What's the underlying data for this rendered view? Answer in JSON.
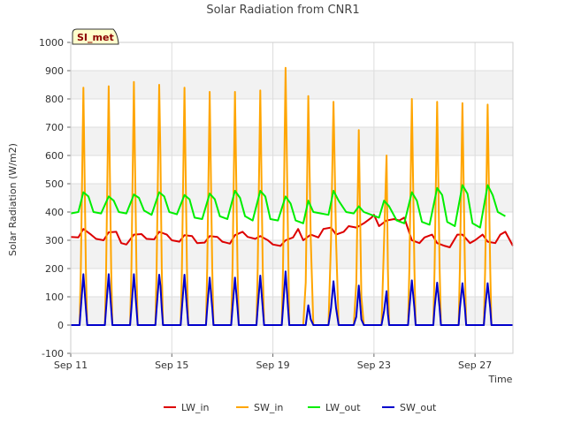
{
  "chart_data": {
    "type": "line",
    "title": "Solar Radiation from CNR1",
    "xlabel": "Time",
    "ylabel": "Solar Radiation (W/m2)",
    "badge": "SI_met",
    "xlim": [
      0,
      17.5
    ],
    "ylim": [
      -100,
      1000
    ],
    "yticks": [
      -100,
      0,
      100,
      200,
      300,
      400,
      500,
      600,
      700,
      800,
      900,
      1000
    ],
    "xticks": [
      {
        "day": 0,
        "label": "Sep 11"
      },
      {
        "day": 4,
        "label": "Sep 15"
      },
      {
        "day": 8,
        "label": "Sep 19"
      },
      {
        "day": 12,
        "label": "Sep 23"
      },
      {
        "day": 16,
        "label": "Sep 27"
      }
    ],
    "grid": true,
    "legend_position": "bottom",
    "series": [
      {
        "name": "LW_in",
        "color": "#dd0000",
        "points": [
          [
            0.0,
            312
          ],
          [
            0.3,
            310
          ],
          [
            0.5,
            340
          ],
          [
            0.8,
            320
          ],
          [
            1.0,
            305
          ],
          [
            1.3,
            300
          ],
          [
            1.5,
            328
          ],
          [
            1.8,
            330
          ],
          [
            2.0,
            290
          ],
          [
            2.2,
            285
          ],
          [
            2.5,
            320
          ],
          [
            2.8,
            322
          ],
          [
            3.0,
            305
          ],
          [
            3.3,
            303
          ],
          [
            3.5,
            330
          ],
          [
            3.8,
            320
          ],
          [
            4.0,
            300
          ],
          [
            4.3,
            295
          ],
          [
            4.5,
            318
          ],
          [
            4.8,
            315
          ],
          [
            5.0,
            290
          ],
          [
            5.3,
            292
          ],
          [
            5.5,
            315
          ],
          [
            5.8,
            312
          ],
          [
            6.0,
            295
          ],
          [
            6.3,
            288
          ],
          [
            6.5,
            318
          ],
          [
            6.8,
            330
          ],
          [
            7.0,
            312
          ],
          [
            7.3,
            305
          ],
          [
            7.5,
            315
          ],
          [
            7.8,
            300
          ],
          [
            8.0,
            285
          ],
          [
            8.3,
            280
          ],
          [
            8.5,
            300
          ],
          [
            8.8,
            310
          ],
          [
            9.0,
            340
          ],
          [
            9.2,
            300
          ],
          [
            9.5,
            320
          ],
          [
            9.8,
            310
          ],
          [
            10.0,
            340
          ],
          [
            10.3,
            345
          ],
          [
            10.5,
            320
          ],
          [
            10.8,
            330
          ],
          [
            11.0,
            350
          ],
          [
            11.3,
            345
          ],
          [
            11.6,
            360
          ],
          [
            11.9,
            380
          ],
          [
            12.0,
            390
          ],
          [
            12.2,
            350
          ],
          [
            12.5,
            370
          ],
          [
            12.8,
            375
          ],
          [
            13.0,
            370
          ],
          [
            13.2,
            380
          ],
          [
            13.5,
            300
          ],
          [
            13.8,
            290
          ],
          [
            14.0,
            310
          ],
          [
            14.3,
            320
          ],
          [
            14.5,
            290
          ],
          [
            14.8,
            280
          ],
          [
            15.0,
            275
          ],
          [
            15.3,
            320
          ],
          [
            15.5,
            320
          ],
          [
            15.8,
            290
          ],
          [
            16.0,
            300
          ],
          [
            16.3,
            320
          ],
          [
            16.5,
            295
          ],
          [
            16.8,
            290
          ],
          [
            17.0,
            320
          ],
          [
            17.2,
            330
          ],
          [
            17.5,
            280
          ]
        ]
      },
      {
        "name": "SW_in",
        "color": "#ffa500",
        "points": [
          [
            0.0,
            0
          ],
          [
            0.35,
            0
          ],
          [
            0.4,
            200
          ],
          [
            0.5,
            840
          ],
          [
            0.6,
            200
          ],
          [
            0.65,
            0
          ],
          [
            1.35,
            0
          ],
          [
            1.4,
            200
          ],
          [
            1.5,
            845
          ],
          [
            1.6,
            200
          ],
          [
            1.65,
            0
          ],
          [
            2.35,
            0
          ],
          [
            2.4,
            200
          ],
          [
            2.5,
            860
          ],
          [
            2.6,
            200
          ],
          [
            2.65,
            0
          ],
          [
            3.35,
            0
          ],
          [
            3.4,
            200
          ],
          [
            3.5,
            850
          ],
          [
            3.55,
            600
          ],
          [
            3.6,
            200
          ],
          [
            3.65,
            0
          ],
          [
            4.35,
            0
          ],
          [
            4.4,
            200
          ],
          [
            4.5,
            840
          ],
          [
            4.6,
            200
          ],
          [
            4.65,
            0
          ],
          [
            5.35,
            0
          ],
          [
            5.4,
            200
          ],
          [
            5.5,
            825
          ],
          [
            5.6,
            200
          ],
          [
            5.65,
            0
          ],
          [
            6.35,
            0
          ],
          [
            6.4,
            200
          ],
          [
            6.5,
            825
          ],
          [
            6.6,
            200
          ],
          [
            6.65,
            0
          ],
          [
            7.35,
            0
          ],
          [
            7.4,
            200
          ],
          [
            7.5,
            830
          ],
          [
            7.6,
            200
          ],
          [
            7.65,
            0
          ],
          [
            8.35,
            0
          ],
          [
            8.4,
            200
          ],
          [
            8.5,
            910
          ],
          [
            8.6,
            300
          ],
          [
            8.65,
            0
          ],
          [
            9.2,
            0
          ],
          [
            9.3,
            150
          ],
          [
            9.4,
            810
          ],
          [
            9.5,
            300
          ],
          [
            9.6,
            0
          ],
          [
            10.2,
            0
          ],
          [
            10.3,
            300
          ],
          [
            10.4,
            790
          ],
          [
            10.5,
            300
          ],
          [
            10.6,
            0
          ],
          [
            11.2,
            0
          ],
          [
            11.3,
            150
          ],
          [
            11.4,
            690
          ],
          [
            11.5,
            100
          ],
          [
            11.6,
            0
          ],
          [
            12.3,
            0
          ],
          [
            12.4,
            300
          ],
          [
            12.5,
            600
          ],
          [
            12.55,
            200
          ],
          [
            12.6,
            0
          ],
          [
            13.35,
            0
          ],
          [
            13.4,
            200
          ],
          [
            13.5,
            800
          ],
          [
            13.6,
            200
          ],
          [
            13.65,
            0
          ],
          [
            14.35,
            0
          ],
          [
            14.4,
            200
          ],
          [
            14.5,
            790
          ],
          [
            14.6,
            200
          ],
          [
            14.65,
            0
          ],
          [
            15.35,
            0
          ],
          [
            15.4,
            200
          ],
          [
            15.5,
            785
          ],
          [
            15.6,
            200
          ],
          [
            15.65,
            0
          ],
          [
            16.35,
            0
          ],
          [
            16.4,
            200
          ],
          [
            16.5,
            780
          ],
          [
            16.6,
            200
          ],
          [
            16.65,
            0
          ],
          [
            17.5,
            0
          ]
        ]
      },
      {
        "name": "LW_out",
        "color": "#00ee00",
        "points": [
          [
            0.0,
            395
          ],
          [
            0.3,
            400
          ],
          [
            0.5,
            470
          ],
          [
            0.7,
            455
          ],
          [
            0.9,
            400
          ],
          [
            1.2,
            395
          ],
          [
            1.5,
            455
          ],
          [
            1.7,
            440
          ],
          [
            1.9,
            400
          ],
          [
            2.2,
            395
          ],
          [
            2.5,
            462
          ],
          [
            2.7,
            450
          ],
          [
            2.9,
            405
          ],
          [
            3.2,
            390
          ],
          [
            3.5,
            470
          ],
          [
            3.7,
            455
          ],
          [
            3.9,
            400
          ],
          [
            4.2,
            392
          ],
          [
            4.5,
            460
          ],
          [
            4.7,
            445
          ],
          [
            4.9,
            380
          ],
          [
            5.2,
            375
          ],
          [
            5.5,
            465
          ],
          [
            5.7,
            445
          ],
          [
            5.9,
            385
          ],
          [
            6.2,
            375
          ],
          [
            6.5,
            475
          ],
          [
            6.7,
            450
          ],
          [
            6.9,
            385
          ],
          [
            7.2,
            370
          ],
          [
            7.5,
            475
          ],
          [
            7.7,
            455
          ],
          [
            7.9,
            375
          ],
          [
            8.2,
            370
          ],
          [
            8.5,
            455
          ],
          [
            8.7,
            430
          ],
          [
            8.9,
            370
          ],
          [
            9.2,
            360
          ],
          [
            9.4,
            440
          ],
          [
            9.6,
            400
          ],
          [
            9.9,
            395
          ],
          [
            10.2,
            390
          ],
          [
            10.4,
            475
          ],
          [
            10.6,
            440
          ],
          [
            10.9,
            400
          ],
          [
            11.2,
            395
          ],
          [
            11.4,
            420
          ],
          [
            11.6,
            400
          ],
          [
            11.9,
            390
          ],
          [
            12.2,
            380
          ],
          [
            12.4,
            440
          ],
          [
            12.6,
            420
          ],
          [
            12.9,
            370
          ],
          [
            13.2,
            360
          ],
          [
            13.5,
            470
          ],
          [
            13.7,
            440
          ],
          [
            13.9,
            365
          ],
          [
            14.2,
            355
          ],
          [
            14.5,
            485
          ],
          [
            14.7,
            460
          ],
          [
            14.9,
            365
          ],
          [
            15.2,
            350
          ],
          [
            15.5,
            495
          ],
          [
            15.7,
            465
          ],
          [
            15.9,
            360
          ],
          [
            16.2,
            345
          ],
          [
            16.5,
            495
          ],
          [
            16.7,
            460
          ],
          [
            16.9,
            400
          ],
          [
            17.2,
            385
          ]
        ]
      },
      {
        "name": "SW_out",
        "color": "#0000cc",
        "points": [
          [
            0.0,
            0
          ],
          [
            0.35,
            0
          ],
          [
            0.4,
            60
          ],
          [
            0.5,
            180
          ],
          [
            0.6,
            60
          ],
          [
            0.65,
            0
          ],
          [
            1.35,
            0
          ],
          [
            1.4,
            60
          ],
          [
            1.5,
            180
          ],
          [
            1.6,
            60
          ],
          [
            1.65,
            0
          ],
          [
            2.35,
            0
          ],
          [
            2.4,
            60
          ],
          [
            2.5,
            180
          ],
          [
            2.6,
            60
          ],
          [
            2.65,
            0
          ],
          [
            3.35,
            0
          ],
          [
            3.4,
            60
          ],
          [
            3.5,
            178
          ],
          [
            3.55,
            140
          ],
          [
            3.6,
            60
          ],
          [
            3.65,
            0
          ],
          [
            4.35,
            0
          ],
          [
            4.4,
            60
          ],
          [
            4.5,
            178
          ],
          [
            4.6,
            60
          ],
          [
            4.65,
            0
          ],
          [
            5.35,
            0
          ],
          [
            5.4,
            60
          ],
          [
            5.5,
            168
          ],
          [
            5.6,
            60
          ],
          [
            5.65,
            0
          ],
          [
            6.35,
            0
          ],
          [
            6.4,
            60
          ],
          [
            6.5,
            168
          ],
          [
            6.6,
            60
          ],
          [
            6.65,
            0
          ],
          [
            7.35,
            0
          ],
          [
            7.4,
            60
          ],
          [
            7.5,
            175
          ],
          [
            7.6,
            60
          ],
          [
            7.65,
            0
          ],
          [
            8.35,
            0
          ],
          [
            8.4,
            60
          ],
          [
            8.5,
            190
          ],
          [
            8.6,
            60
          ],
          [
            8.65,
            0
          ],
          [
            9.3,
            0
          ],
          [
            9.4,
            70
          ],
          [
            9.5,
            20
          ],
          [
            9.6,
            0
          ],
          [
            10.2,
            0
          ],
          [
            10.3,
            60
          ],
          [
            10.4,
            155
          ],
          [
            10.5,
            60
          ],
          [
            10.6,
            0
          ],
          [
            11.2,
            0
          ],
          [
            11.3,
            30
          ],
          [
            11.4,
            140
          ],
          [
            11.5,
            20
          ],
          [
            11.6,
            0
          ],
          [
            12.3,
            0
          ],
          [
            12.4,
            50
          ],
          [
            12.5,
            120
          ],
          [
            12.55,
            40
          ],
          [
            12.6,
            0
          ],
          [
            13.35,
            0
          ],
          [
            13.4,
            60
          ],
          [
            13.5,
            158
          ],
          [
            13.6,
            60
          ],
          [
            13.65,
            0
          ],
          [
            14.35,
            0
          ],
          [
            14.4,
            60
          ],
          [
            14.5,
            150
          ],
          [
            14.6,
            60
          ],
          [
            14.65,
            0
          ],
          [
            15.35,
            0
          ],
          [
            15.4,
            60
          ],
          [
            15.5,
            148
          ],
          [
            15.6,
            60
          ],
          [
            15.65,
            0
          ],
          [
            16.35,
            0
          ],
          [
            16.4,
            60
          ],
          [
            16.5,
            148
          ],
          [
            16.6,
            60
          ],
          [
            16.65,
            0
          ],
          [
            17.5,
            0
          ]
        ]
      }
    ]
  }
}
